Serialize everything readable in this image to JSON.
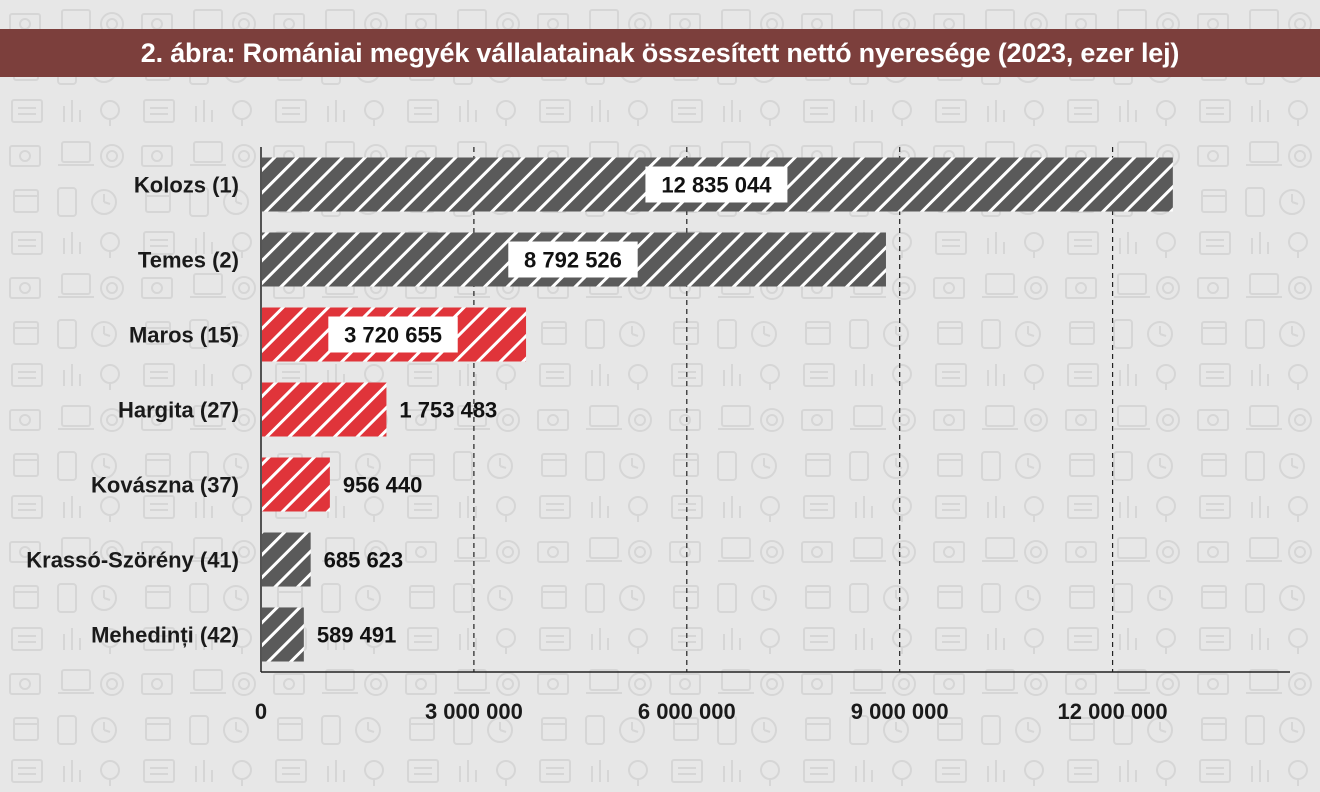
{
  "title": "2. ábra: Romániai megyék vállalatainak összesített nettó nyeresége (2023, ezer lej)",
  "colors": {
    "title_bg": "#7c3f3c",
    "gray_bar": "#5a5a5a",
    "red_bar": "#e0343a",
    "background": "#e7e7e7"
  },
  "chart_data": {
    "type": "bar",
    "orientation": "horizontal",
    "categories": [
      "Kolozs (1)",
      "Temes (2)",
      "Maros (15)",
      "Hargita (27)",
      "Kovászna (37)",
      "Krassó-Szörény (41)",
      "Mehedinți (42)"
    ],
    "values": [
      12835044,
      8792526,
      3720655,
      1753483,
      956440,
      685623,
      589491
    ],
    "value_labels": [
      "12 835 044",
      "8 792 526",
      "3 720 655",
      "1 753 483",
      "956 440",
      "685 623",
      "589 491"
    ],
    "bar_colors": [
      "gray",
      "gray",
      "red",
      "red",
      "red",
      "gray",
      "gray"
    ],
    "xlim": [
      0,
      14500000
    ],
    "xticks": [
      0,
      3000000,
      6000000,
      9000000,
      12000000
    ],
    "xtick_labels": [
      "0",
      "3 000 000",
      "6 000 000",
      "9 000 000",
      "12 000 000"
    ],
    "grid": "vertical dashed",
    "xlabel": "",
    "ylabel": ""
  }
}
